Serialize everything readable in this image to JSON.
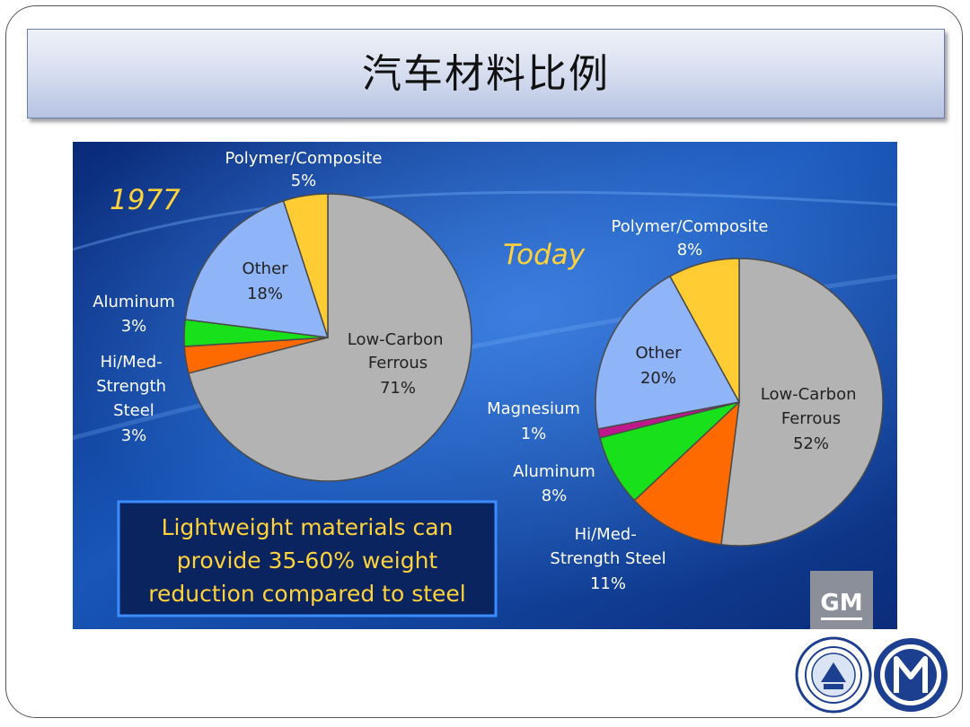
{
  "slide": {
    "title": "汽车材料比例"
  },
  "chart_data": [
    {
      "type": "pie",
      "title": "1977",
      "slices": [
        {
          "label": "Low-Carbon Ferrous",
          "value": 71,
          "value_label": "71%",
          "color": "#b3b3b3"
        },
        {
          "label": "Hi/Med-Strength Steel",
          "value": 3,
          "value_label": "3%",
          "color": "#ff6a00"
        },
        {
          "label": "Aluminum",
          "value": 3,
          "value_label": "3%",
          "color": "#18e01a"
        },
        {
          "label": "Other",
          "value": 18,
          "value_label": "18%",
          "color": "#8fb4f8"
        },
        {
          "label": "Polymer/Composite",
          "value": 5,
          "value_label": "5%",
          "color": "#ffcc33"
        }
      ]
    },
    {
      "type": "pie",
      "title": "Today",
      "slices": [
        {
          "label": "Low-Carbon Ferrous",
          "value": 52,
          "value_label": "52%",
          "color": "#b3b3b3"
        },
        {
          "label": "Hi/Med-Strength Steel",
          "value": 11,
          "value_label": "11%",
          "color": "#ff6a00"
        },
        {
          "label": "Aluminum",
          "value": 8,
          "value_label": "8%",
          "color": "#18e01a"
        },
        {
          "label": "Magnesium",
          "value": 1,
          "value_label": "1%",
          "color": "#c0188c"
        },
        {
          "label": "Other",
          "value": 20,
          "value_label": "20%",
          "color": "#8fb4f8"
        },
        {
          "label": "Polymer/Composite",
          "value": 8,
          "value_label": "8%",
          "color": "#ffcc33"
        }
      ]
    }
  ],
  "callout": {
    "lines": [
      "Lightweight materials can",
      "provide 35-60% weight",
      "reduction compared to steel"
    ]
  },
  "brand": {
    "logo_text": "GM"
  },
  "colors": {
    "year_label": "#ffd23c",
    "callout_text": "#ffd23c",
    "callout_border": "#3d8cff"
  }
}
